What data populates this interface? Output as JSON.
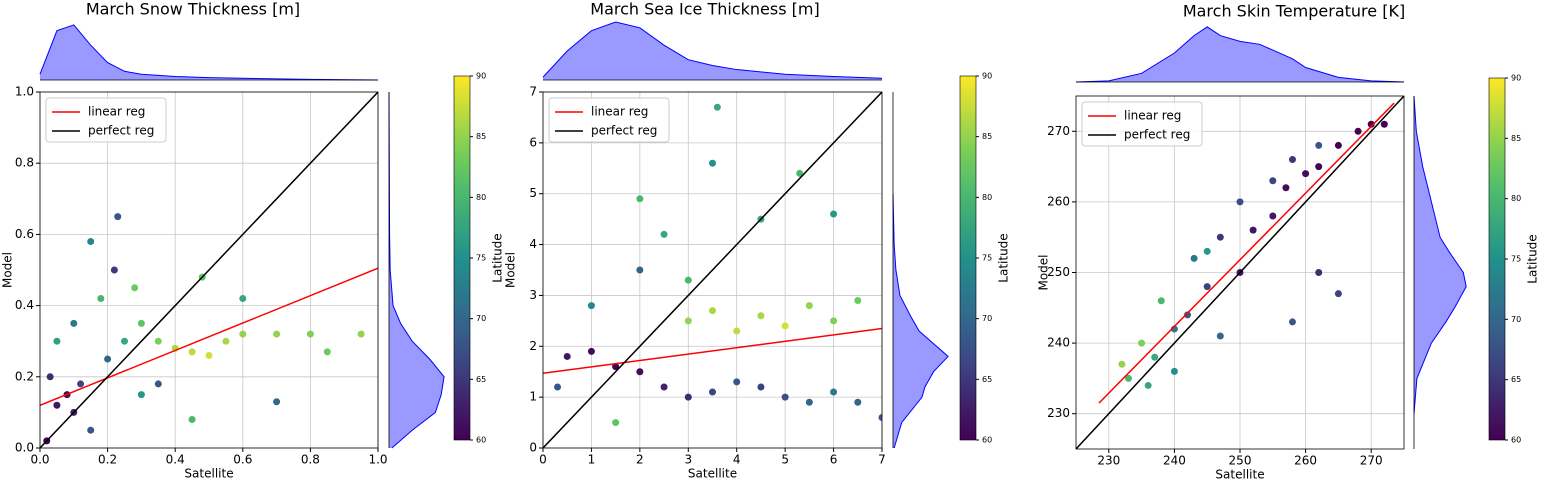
{
  "chart_data": [
    {
      "type": "scatter",
      "title": "March Snow Thickness [m]",
      "x_label": "Satellite",
      "y_label": "Model",
      "colorbar_label": "Latitude",
      "colormap": "viridis",
      "clim": [
        60,
        90
      ],
      "cticks": [
        60,
        65,
        70,
        75,
        80,
        85,
        90
      ],
      "grid": true,
      "legend": "upper left",
      "marginal_color": "#0000ff",
      "xlim": [
        0,
        1.0
      ],
      "ylim": [
        0,
        1.0
      ],
      "xticks": [
        {
          "value": 0,
          "label": "0.0"
        },
        0.2,
        0.4,
        0.6,
        0.8,
        {
          "value": 1.0,
          "label": "1.0"
        }
      ],
      "yticks": [
        {
          "value": 0,
          "label": "0.0"
        },
        0.2,
        0.4,
        0.6,
        0.8,
        {
          "value": 1.0,
          "label": "1.0"
        }
      ],
      "points": {
        "x": [
          0.05,
          0.08,
          0.1,
          0.03,
          0.12,
          0.15,
          0.2,
          0.25,
          0.3,
          0.35,
          0.4,
          0.45,
          0.5,
          0.55,
          0.6,
          0.7,
          0.8,
          0.85,
          0.95,
          0.22,
          0.23,
          0.15,
          0.3,
          0.45,
          0.1,
          0.05,
          0.18,
          0.28,
          0.48,
          0.02,
          0.35,
          0.6,
          0.7
        ],
        "y": [
          0.12,
          0.15,
          0.1,
          0.2,
          0.18,
          0.05,
          0.25,
          0.3,
          0.35,
          0.3,
          0.28,
          0.27,
          0.26,
          0.3,
          0.32,
          0.32,
          0.32,
          0.27,
          0.32,
          0.5,
          0.65,
          0.58,
          0.15,
          0.08,
          0.35,
          0.3,
          0.42,
          0.45,
          0.48,
          0.02,
          0.18,
          0.42,
          0.13
        ],
        "c": [
          62,
          61,
          63,
          64,
          66,
          68,
          70,
          78,
          82,
          84,
          86,
          87,
          88,
          86,
          85,
          85,
          84,
          83,
          85,
          65,
          68,
          74,
          76,
          80,
          72,
          77,
          80,
          83,
          82,
          60,
          68,
          78,
          70
        ]
      },
      "lines": [
        {
          "name": "linear reg",
          "color": "red",
          "x": [
            0,
            1.0
          ],
          "y": [
            0.12,
            0.505
          ]
        },
        {
          "name": "perfect reg",
          "color": "black",
          "x": [
            0,
            1.0
          ],
          "y": [
            0,
            1.0
          ]
        }
      ],
      "top_marginal": {
        "x": [
          0,
          0.05,
          0.1,
          0.15,
          0.2,
          0.25,
          0.3,
          0.4,
          0.5,
          0.6,
          0.8,
          1.0
        ],
        "density": [
          0.1,
          0.85,
          0.95,
          0.6,
          0.3,
          0.15,
          0.1,
          0.06,
          0.04,
          0.03,
          0.01,
          0
        ]
      },
      "right_marginal": {
        "y": [
          0,
          0.05,
          0.1,
          0.15,
          0.2,
          0.25,
          0.3,
          0.35,
          0.4,
          0.5,
          0.6,
          1.0
        ],
        "density": [
          0.05,
          0.4,
          0.8,
          0.9,
          0.95,
          0.7,
          0.4,
          0.2,
          0.07,
          0.02,
          0.01,
          0
        ]
      }
    },
    {
      "type": "scatter",
      "title": "March Sea Ice Thickness [m]",
      "x_label": "Satellite",
      "y_label": "Model",
      "colorbar_label": "Latitude",
      "colormap": "viridis",
      "clim": [
        60,
        90
      ],
      "cticks": [
        60,
        65,
        70,
        75,
        80,
        85,
        90
      ],
      "grid": true,
      "legend": "upper left",
      "marginal_color": "#0000ff",
      "xlim": [
        0,
        7
      ],
      "ylim": [
        0,
        7
      ],
      "xticks": [
        0,
        1,
        2,
        3,
        4,
        5,
        6,
        7
      ],
      "yticks": [
        0,
        1,
        2,
        3,
        4,
        5,
        6,
        7
      ],
      "points": {
        "x": [
          0.5,
          1,
          1.5,
          2,
          2.5,
          3,
          3.5,
          4,
          4.5,
          5,
          5.5,
          6,
          3,
          3.5,
          4,
          4.5,
          5,
          5.5,
          6,
          6.5,
          2,
          2.5,
          3,
          3.6,
          3.5,
          4.5,
          5.3,
          6,
          1,
          0.3,
          1.5,
          6.5,
          7,
          2
        ],
        "y": [
          1.8,
          1.9,
          1.6,
          1.5,
          1.2,
          1.0,
          1.1,
          1.3,
          1.2,
          1.0,
          0.9,
          1.1,
          2.5,
          2.7,
          2.3,
          2.6,
          2.4,
          2.8,
          2.5,
          2.9,
          3.5,
          4.2,
          3.3,
          6.7,
          5.6,
          4.5,
          5.4,
          4.6,
          2.8,
          1.2,
          0.5,
          0.9,
          0.6,
          4.9
        ],
        "c": [
          62,
          61,
          60,
          61,
          63,
          64,
          66,
          68,
          66,
          67,
          70,
          72,
          85,
          86,
          87,
          86,
          88,
          85,
          84,
          83,
          70,
          78,
          80,
          78,
          75,
          78,
          80,
          76,
          74,
          68,
          82,
          70,
          68,
          80
        ]
      },
      "lines": [
        {
          "name": "linear reg",
          "color": "red",
          "x": [
            0,
            7
          ],
          "y": [
            1.47,
            2.35
          ]
        },
        {
          "name": "perfect reg",
          "color": "black",
          "x": [
            0,
            7
          ],
          "y": [
            0,
            7
          ]
        }
      ],
      "top_marginal": {
        "x": [
          0,
          0.5,
          1,
          1.5,
          2,
          2.5,
          3,
          3.5,
          4,
          5,
          6,
          7
        ],
        "density": [
          0.05,
          0.5,
          0.85,
          1.0,
          0.9,
          0.6,
          0.35,
          0.25,
          0.18,
          0.1,
          0.06,
          0.03
        ]
      },
      "right_marginal": {
        "y": [
          0,
          0.5,
          1,
          1.2,
          1.5,
          1.8,
          2,
          2.3,
          2.6,
          3,
          3.5,
          4,
          5
        ],
        "density": [
          0.02,
          0.15,
          0.5,
          0.55,
          0.7,
          0.95,
          0.75,
          0.45,
          0.3,
          0.12,
          0.05,
          0.02,
          0
        ]
      }
    },
    {
      "type": "scatter",
      "title": "March Skin Temperature [K]",
      "x_label": "Satellite",
      "y_label": "Model",
      "colorbar_label": "Latitude",
      "colormap": "viridis",
      "clim": [
        60,
        90
      ],
      "cticks": [
        60,
        65,
        70,
        75,
        80,
        85,
        90
      ],
      "grid": true,
      "legend": "upper left",
      "marginal_color": "#0000ff",
      "xlim": [
        225,
        275
      ],
      "ylim": [
        225,
        275
      ],
      "xticks": [
        230,
        240,
        250,
        260,
        270
      ],
      "yticks": [
        230,
        240,
        250,
        260,
        270
      ],
      "points": {
        "x": [
          232,
          235,
          233,
          237,
          240,
          238,
          242,
          245,
          243,
          247,
          250,
          252,
          255,
          257,
          260,
          262,
          265,
          268,
          270,
          272,
          255,
          250,
          258,
          262,
          265,
          258,
          247,
          240,
          236,
          262,
          245
        ],
        "y": [
          237,
          240,
          235,
          238,
          242,
          246,
          244,
          248,
          252,
          255,
          250,
          256,
          258,
          262,
          264,
          265,
          268,
          270,
          271,
          271,
          263,
          260,
          266,
          268,
          247,
          243,
          241,
          236,
          234,
          250,
          253
        ],
        "c": [
          85,
          84,
          80,
          78,
          72,
          80,
          68,
          66,
          72,
          65,
          62,
          62,
          62,
          61,
          61,
          60,
          60,
          60,
          60,
          60,
          66,
          67,
          65,
          68,
          66,
          68,
          70,
          75,
          78,
          64,
          76
        ]
      },
      "lines": [
        {
          "name": "linear reg",
          "color": "red",
          "x": [
            228.5,
            273.5
          ],
          "y": [
            231.5,
            274
          ]
        },
        {
          "name": "perfect reg",
          "color": "black",
          "x": [
            225,
            275
          ],
          "y": [
            225,
            275
          ]
        }
      ],
      "top_marginal": {
        "x": [
          225,
          230,
          235,
          240,
          243,
          245,
          247,
          250,
          253,
          255,
          258,
          260,
          265,
          270,
          275
        ],
        "density": [
          0,
          0.02,
          0.15,
          0.5,
          0.8,
          0.95,
          0.8,
          0.7,
          0.65,
          0.55,
          0.4,
          0.25,
          0.08,
          0.02,
          0
        ]
      },
      "right_marginal": {
        "y": [
          230,
          235,
          240,
          243,
          245,
          248,
          250,
          253,
          255,
          260,
          265,
          270,
          275
        ],
        "density": [
          0,
          0.05,
          0.3,
          0.55,
          0.7,
          0.9,
          0.85,
          0.6,
          0.45,
          0.3,
          0.15,
          0.04,
          0
        ]
      }
    }
  ]
}
